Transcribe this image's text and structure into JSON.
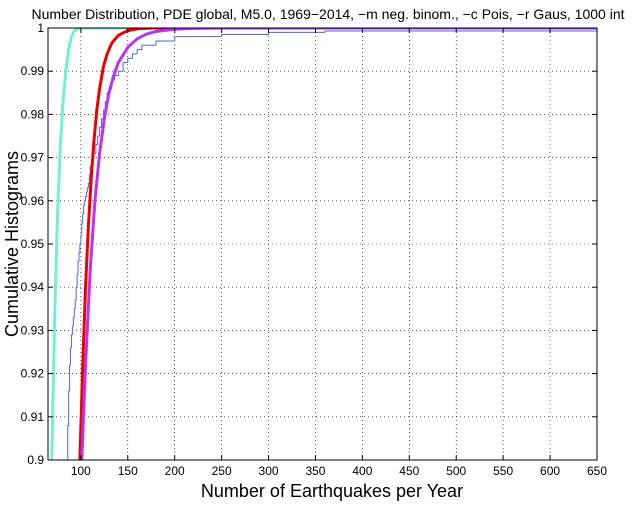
{
  "chart_data": {
    "type": "line",
    "title": "Number Distribution, PDE global, M5.0, 1969−2014, −m neg. binom., −c Pois, −r Gaus, 1000 int",
    "xlabel": "Number of Earthquakes per Year",
    "ylabel": "Cumulative Histograms",
    "xlim": [
      65,
      650
    ],
    "ylim": [
      0.9,
      1.0
    ],
    "x_ticks": [
      100,
      150,
      200,
      250,
      300,
      350,
      400,
      450,
      500,
      550,
      600,
      650
    ],
    "y_ticks": [
      0.9,
      0.91,
      0.92,
      0.93,
      0.94,
      0.95,
      0.96,
      0.97,
      0.98,
      0.99,
      1.0
    ],
    "x_tick_labels": [
      "100",
      "150",
      "200",
      "250",
      "300",
      "350",
      "400",
      "450",
      "500",
      "550",
      "600",
      "650"
    ],
    "y_tick_labels": [
      "0.9",
      "0.91",
      "0.92",
      "0.93",
      "0.94",
      "0.95",
      "0.96",
      "0.97",
      "0.98",
      "0.99",
      "1"
    ],
    "grid": true,
    "series": [
      {
        "color": "#5566dd",
        "style": "step",
        "x": [
          85,
          86,
          87,
          88,
          89,
          90,
          91,
          92,
          93,
          94,
          95,
          96,
          97,
          98,
          99,
          100,
          101,
          102,
          103,
          104,
          105,
          106,
          107,
          108,
          109,
          110,
          112,
          114,
          116,
          118,
          120,
          122,
          124,
          126,
          128,
          130,
          133,
          136,
          140,
          145,
          150,
          155,
          160,
          165,
          170,
          180,
          190,
          200,
          230,
          250,
          270,
          300,
          340,
          360,
          605,
          650
        ],
        "y": [
          0.9,
          0.908,
          0.916,
          0.922,
          0.926,
          0.929,
          0.931,
          0.933,
          0.935,
          0.937,
          0.94,
          0.943,
          0.946,
          0.948,
          0.95,
          0.952,
          0.955,
          0.957,
          0.959,
          0.96,
          0.961,
          0.962,
          0.963,
          0.964,
          0.966,
          0.968,
          0.97,
          0.971,
          0.973,
          0.975,
          0.977,
          0.979,
          0.981,
          0.983,
          0.985,
          0.986,
          0.988,
          0.989,
          0.99,
          0.992,
          0.993,
          0.994,
          0.995,
          0.996,
          0.996,
          0.997,
          0.997,
          0.998,
          0.998,
          0.9985,
          0.9985,
          0.999,
          0.999,
          0.9993,
          0.9993,
          1.0
        ]
      },
      {
        "color": "#70f0d8",
        "style": "line",
        "x": [
          69,
          72,
          75,
          78,
          81,
          84,
          87,
          90,
          93,
          96,
          100,
          110,
          650
        ],
        "y": [
          0.9,
          0.932,
          0.956,
          0.972,
          0.983,
          0.99,
          0.995,
          0.998,
          0.9993,
          0.9998,
          1.0,
          1.0,
          1.0
        ]
      },
      {
        "color": "#ee0000",
        "style": "line",
        "x": [
          99,
          102,
          105,
          108,
          111,
          114,
          117,
          120,
          124,
          128,
          133,
          140,
          150,
          160,
          175,
          200,
          650
        ],
        "y": [
          0.9,
          0.922,
          0.94,
          0.954,
          0.965,
          0.974,
          0.981,
          0.986,
          0.991,
          0.994,
          0.9965,
          0.9983,
          0.9994,
          0.9998,
          1.0,
          1.0,
          1.0
        ]
      },
      {
        "color": "#bb33ee",
        "style": "line",
        "x": [
          101,
          105,
          110,
          115,
          120,
          125,
          130,
          135,
          140,
          150,
          160,
          170,
          180,
          200,
          220,
          250,
          300,
          650
        ],
        "y": [
          0.9,
          0.922,
          0.944,
          0.96,
          0.971,
          0.979,
          0.985,
          0.989,
          0.992,
          0.9955,
          0.9975,
          0.9986,
          0.9992,
          0.9997,
          0.9999,
          1.0,
          1.0,
          1.0
        ]
      }
    ]
  }
}
